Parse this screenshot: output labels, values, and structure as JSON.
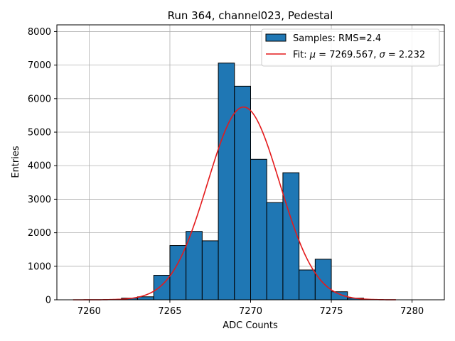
{
  "chart_data": {
    "type": "bar",
    "title": "Run 364, channel023, Pedestal",
    "xlabel": "ADC Counts",
    "ylabel": "Entries",
    "xlim": [
      7258,
      7282
    ],
    "ylim": [
      0,
      8200
    ],
    "xticks": [
      7260,
      7265,
      7270,
      7275,
      7280
    ],
    "yticks": [
      0,
      1000,
      2000,
      3000,
      4000,
      5000,
      6000,
      7000,
      8000
    ],
    "grid": true,
    "legend_position": "top-right",
    "bin_width": 1,
    "histogram": {
      "name": "Samples: RMS=2.4",
      "color": "#1f77b4",
      "edge_color": "#000000",
      "bin_starts": [
        7262,
        7263,
        7264,
        7265,
        7266,
        7267,
        7268,
        7269,
        7270,
        7271,
        7272,
        7273,
        7274,
        7275,
        7276
      ],
      "values": [
        50,
        90,
        730,
        1620,
        2040,
        1760,
        7060,
        6370,
        4190,
        2900,
        3790,
        890,
        1210,
        240,
        50
      ]
    },
    "fit": {
      "name_prefix": "Fit: ",
      "name_mu_symbol": "μ",
      "name_mu_text": " = 7269.567, ",
      "name_sigma_symbol": "σ",
      "name_sigma_text": " = 2.232",
      "color": "#e41a1c",
      "mu": 7269.567,
      "sigma": 2.232,
      "peak": 5750,
      "x_range": [
        7259,
        7279
      ]
    }
  }
}
